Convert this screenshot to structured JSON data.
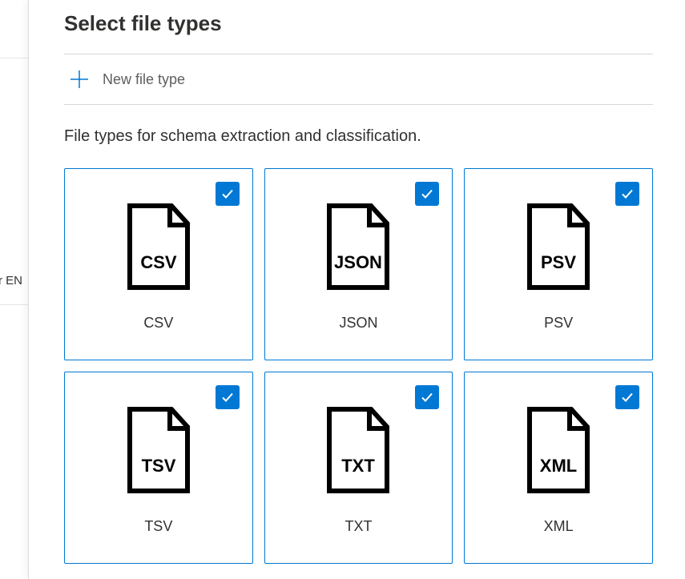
{
  "left_snippet": "r EN",
  "title": "Select file types",
  "new_file_type_label": "New file type",
  "description": "File types for schema extraction and classification.",
  "colors": {
    "accent": "#0078d4",
    "plus": "#0078d4",
    "check_bg": "#0078d4",
    "check_fg": "#ffffff",
    "icon_stroke": "#000000",
    "card_border_selected": "#0078d4",
    "card_border_default": "#8a8886"
  },
  "file_types": [
    {
      "code": "CSV",
      "label": "CSV",
      "selected": true
    },
    {
      "code": "JSON",
      "label": "JSON",
      "selected": true
    },
    {
      "code": "PSV",
      "label": "PSV",
      "selected": true
    },
    {
      "code": "TSV",
      "label": "TSV",
      "selected": true
    },
    {
      "code": "TXT",
      "label": "TXT",
      "selected": true
    },
    {
      "code": "XML",
      "label": "XML",
      "selected": true
    }
  ]
}
